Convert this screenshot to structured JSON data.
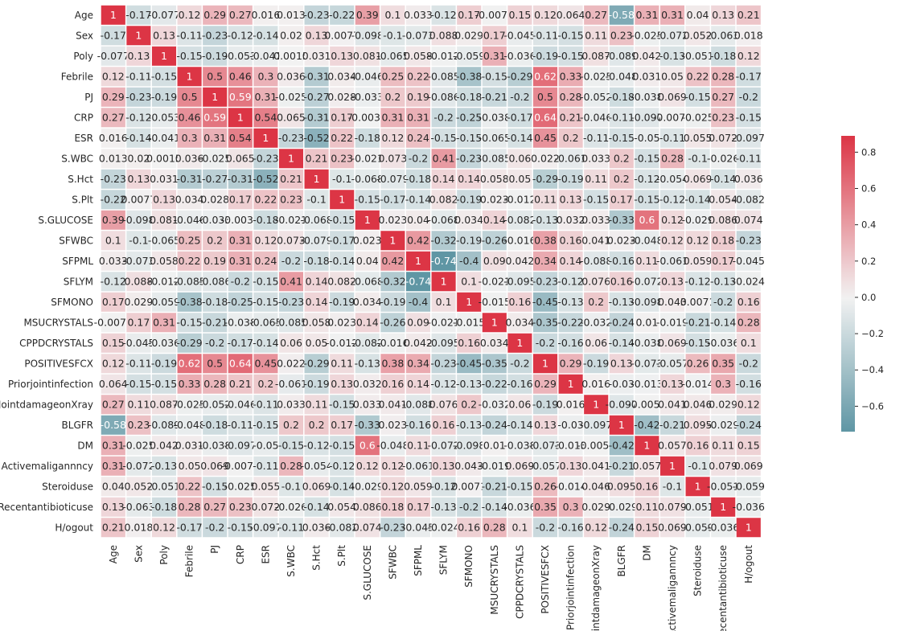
{
  "chart_data": {
    "type": "heatmap",
    "labels": [
      "Age",
      "Sex",
      "Poly",
      "Febrile",
      "PJ",
      "CRP",
      "ESR",
      "S.WBC",
      "S.Hct",
      "S.Plt",
      "S.GLUCOSE",
      "SFWBC",
      "SFPML",
      "SFLYM",
      "SFMONO",
      "MSUCRYSTALS",
      "CPPDCRYSTALS",
      "POSITIVESFCX",
      "Priorjointinfection",
      "JointdamageonXray",
      "BLGFR",
      "DM",
      "Activemaligannncy",
      "Steroiduse",
      "Recentantibioticuse",
      "H/ogout"
    ],
    "cell_text": [
      [
        "1",
        "-0.17",
        "-0.077",
        "0.12",
        "0.29",
        "0.27",
        "0.016",
        "0.013",
        "-0.23",
        "-0.22",
        "0.39",
        "0.1",
        "0.033",
        "-0.12",
        "0.17",
        "-0.0075",
        "0.15",
        "0.12",
        "0.064",
        "0.27",
        "-0.58",
        "0.31",
        "0.31",
        "0.04",
        "0.13",
        "0.21"
      ],
      [
        "-0.17",
        "1",
        "0.13",
        "-0.11",
        "-0.23",
        "-0.12",
        "-0.14",
        "0.02",
        "0.13",
        "0.0077",
        "-0.098",
        "-0.1",
        "-0.073",
        "0.088",
        "0.029",
        "0.17",
        "-0.045",
        "-0.11",
        "-0.15",
        "0.11",
        "0.23",
        "-0.025",
        "-0.072",
        "0.052",
        "-0.063",
        "0.018"
      ],
      [
        "-0.077",
        "0.13",
        "1",
        "-0.15",
        "-0.19",
        "-0.053",
        "-0.041",
        "0.0015",
        "0.031",
        "0.13",
        "0.081",
        "-0.065",
        "0.058",
        "-0.012",
        "-0.059",
        "0.31",
        "-0.036",
        "-0.19",
        "-0.15",
        "0.087",
        "-0.089",
        "0.042",
        "-0.13",
        "-0.051",
        "-0.18",
        "0.12"
      ],
      [
        "0.12",
        "-0.11",
        "-0.15",
        "1",
        "0.5",
        "0.46",
        "0.3",
        "0.036",
        "-0.31",
        "0.034",
        "-0.046",
        "0.25",
        "0.22",
        "-0.085",
        "-0.38",
        "-0.15",
        "-0.29",
        "0.62",
        "0.33",
        "-0.025",
        "-0.048",
        "0.031",
        "0.05",
        "0.22",
        "0.28",
        "-0.17"
      ],
      [
        "0.29",
        "-0.23",
        "-0.19",
        "0.5",
        "1",
        "0.59",
        "0.31",
        "-0.025",
        "-0.27",
        "0.028",
        "-0.033",
        "0.2",
        "0.19",
        "-0.086",
        "-0.18",
        "-0.21",
        "-0.2",
        "0.5",
        "0.28",
        "-0.052",
        "-0.18",
        "-0.038",
        "0.069",
        "-0.15",
        "0.27",
        "-0.2"
      ],
      [
        "0.27",
        "-0.12",
        "-0.053",
        "0.46",
        "0.59",
        "1",
        "0.54",
        "0.065",
        "-0.31",
        "0.17",
        "-0.0034",
        "0.31",
        "0.31",
        "-0.2",
        "-0.25",
        "-0.038",
        "-0.17",
        "0.64",
        "0.21",
        "-0.046",
        "-0.11",
        "-0.097",
        "-0.0072",
        "-0.025",
        "0.23",
        "-0.15"
      ],
      [
        "0.016",
        "-0.14",
        "-0.041",
        "0.3",
        "0.31",
        "0.54",
        "1",
        "-0.23",
        "-0.52",
        "0.22",
        "-0.18",
        "0.12",
        "0.24",
        "-0.15",
        "-0.15",
        "-0.065",
        "-0.14",
        "0.45",
        "0.2",
        "-0.11",
        "-0.15",
        "-0.05",
        "-0.11",
        "0.055",
        "0.072",
        "-0.097"
      ],
      [
        "0.013",
        "0.02",
        "0.0015",
        "0.036",
        "-0.025",
        "0.065",
        "-0.23",
        "1",
        "0.21",
        "0.23",
        "-0.021",
        "0.073",
        "-0.2",
        "0.41",
        "-0.23",
        "-0.085",
        "0.06",
        "0.022",
        "-0.061",
        "0.033",
        "0.2",
        "-0.15",
        "0.28",
        "-0.1",
        "-0.026",
        "-0.11"
      ],
      [
        "-0.23",
        "0.13",
        "0.031",
        "-0.31",
        "-0.27",
        "-0.31",
        "-0.52",
        "0.21",
        "1",
        "-0.1",
        "-0.068",
        "-0.079",
        "-0.18",
        "0.14",
        "0.14",
        "0.058",
        "0.05",
        "-0.29",
        "-0.19",
        "0.11",
        "0.2",
        "-0.12",
        "-0.054",
        "0.069",
        "-0.14",
        "0.036"
      ],
      [
        "-0.22",
        "0.0077",
        "0.13",
        "0.034",
        "0.028",
        "0.17",
        "0.22",
        "0.23",
        "-0.1",
        "1",
        "-0.15",
        "-0.17",
        "-0.14",
        "0.082",
        "-0.19",
        "0.023",
        "-0.012",
        "0.11",
        "0.13",
        "-0.15",
        "0.17",
        "-0.15",
        "-0.12",
        "-0.14",
        "0.054",
        "-0.082"
      ],
      [
        "0.39",
        "-0.098",
        "0.081",
        "-0.046",
        "-0.033",
        "-0.0034",
        "-0.18",
        "-0.021",
        "-0.068",
        "-0.15",
        "1",
        "0.023",
        "0.04",
        "-0.068",
        "0.034",
        "0.14",
        "-0.082",
        "-0.13",
        "0.032",
        "0.033",
        "-0.33",
        "0.6",
        "0.12",
        "-0.029",
        "0.086",
        "0.074"
      ],
      [
        "0.1",
        "-0.1",
        "-0.065",
        "0.25",
        "0.2",
        "0.31",
        "0.12",
        "0.073",
        "-0.079",
        "-0.17",
        "0.023",
        "1",
        "0.42",
        "-0.32",
        "-0.19",
        "-0.26",
        "-0.016",
        "0.38",
        "0.16",
        "0.041",
        "0.023",
        "-0.048",
        "0.12",
        "0.12",
        "0.18",
        "-0.23"
      ],
      [
        "0.033",
        "-0.073",
        "0.058",
        "0.22",
        "0.19",
        "0.31",
        "0.24",
        "-0.2",
        "-0.18",
        "-0.14",
        "0.04",
        "0.42",
        "1",
        "-0.74",
        "-0.4",
        "0.09",
        "0.042",
        "0.34",
        "0.14",
        "-0.088",
        "-0.16",
        "0.11",
        "-0.061",
        "0.059",
        "0.17",
        "-0.045"
      ],
      [
        "-0.12",
        "0.088",
        "-0.012",
        "-0.085",
        "-0.086",
        "-0.2",
        "-0.15",
        "0.41",
        "0.14",
        "0.082",
        "-0.068",
        "-0.32",
        "-0.74",
        "1",
        "0.1",
        "-0.021",
        "-0.095",
        "-0.23",
        "-0.12",
        "0.076",
        "0.16",
        "-0.072",
        "0.13",
        "-0.12",
        "-0.13",
        "-0.024"
      ],
      [
        "0.17",
        "0.029",
        "-0.059",
        "-0.38",
        "-0.18",
        "-0.25",
        "-0.15",
        "-0.23",
        "0.14",
        "-0.19",
        "0.034",
        "-0.19",
        "-0.4",
        "0.1",
        "1",
        "-0.015",
        "0.16",
        "-0.45",
        "-0.13",
        "0.2",
        "-0.13",
        "-0.098",
        "0.043",
        "0.0071",
        "-0.2",
        "0.16"
      ],
      [
        "-0.0075",
        "0.17",
        "0.31",
        "-0.15",
        "-0.21",
        "-0.038",
        "-0.065",
        "-0.085",
        "0.058",
        "0.023",
        "0.14",
        "-0.26",
        "0.09",
        "-0.021",
        "-0.015",
        "1",
        "0.034",
        "-0.35",
        "-0.22",
        "-0.032",
        "-0.24",
        "0.01",
        "-0.019",
        "-0.21",
        "-0.14",
        "0.28"
      ],
      [
        "0.15",
        "-0.045",
        "-0.036",
        "-0.29",
        "-0.2",
        "-0.17",
        "-0.14",
        "0.06",
        "0.05",
        "-0.012",
        "-0.082",
        "-0.016",
        "0.042",
        "-0.095",
        "0.16",
        "0.034",
        "1",
        "-0.2",
        "-0.16",
        "0.06",
        "-0.14",
        "-0.038",
        "0.069",
        "-0.15",
        "-0.036",
        "0.1"
      ],
      [
        "0.12",
        "-0.11",
        "-0.19",
        "0.62",
        "0.5",
        "0.64",
        "0.45",
        "0.022",
        "-0.29",
        "0.11",
        "-0.13",
        "0.38",
        "0.34",
        "-0.23",
        "-0.45",
        "-0.35",
        "-0.2",
        "1",
        "0.29",
        "-0.19",
        "0.13",
        "-0.073",
        "-0.057",
        "0.26",
        "0.35",
        "-0.2"
      ],
      [
        "0.064",
        "-0.15",
        "-0.15",
        "0.33",
        "0.28",
        "0.21",
        "0.2",
        "-0.061",
        "-0.19",
        "0.13",
        "0.032",
        "0.16",
        "0.14",
        "-0.12",
        "-0.13",
        "-0.22",
        "-0.16",
        "0.29",
        "1",
        "0.016",
        "-0.03",
        "-0.013",
        "0.13",
        "-0.014",
        "0.3",
        "-0.16"
      ],
      [
        "0.27",
        "0.11",
        "0.087",
        "-0.025",
        "-0.052",
        "-0.046",
        "-0.11",
        "0.033",
        "0.11",
        "-0.15",
        "0.033",
        "0.041",
        "-0.088",
        "0.076",
        "0.2",
        "-0.032",
        "0.06",
        "-0.19",
        "0.016",
        "1",
        "-0.097",
        "-0.0057",
        "0.041",
        "0.046",
        "0.029",
        "0.12"
      ],
      [
        "-0.58",
        "0.23",
        "-0.089",
        "-0.048",
        "-0.18",
        "-0.11",
        "-0.15",
        "0.2",
        "0.2",
        "0.17",
        "-0.33",
        "0.023",
        "-0.16",
        "0.16",
        "-0.13",
        "-0.24",
        "-0.14",
        "0.13",
        "-0.03",
        "-0.097",
        "1",
        "-0.42",
        "-0.21",
        "0.095",
        "-0.029",
        "-0.24"
      ],
      [
        "0.31",
        "-0.025",
        "0.042",
        "0.031",
        "-0.038",
        "-0.097",
        "-0.05",
        "-0.15",
        "-0.12",
        "-0.15",
        "0.6",
        "-0.048",
        "0.11",
        "-0.072",
        "-0.098",
        "0.01",
        "-0.038",
        "-0.073",
        "-0.013",
        "-0.0057",
        "-0.42",
        "1",
        "0.057",
        "0.16",
        "0.11",
        "0.15"
      ],
      [
        "0.31",
        "-0.072",
        "-0.13",
        "0.05",
        "0.069",
        "-0.0072",
        "-0.11",
        "0.28",
        "-0.054",
        "-0.12",
        "0.12",
        "0.12",
        "-0.061",
        "0.13",
        "0.043",
        "-0.019",
        "0.069",
        "-0.057",
        "0.13",
        "0.041",
        "-0.21",
        "0.057",
        "1",
        "-0.1",
        "0.079",
        "0.069"
      ],
      [
        "0.04",
        "0.052",
        "-0.051",
        "0.22",
        "-0.15",
        "-0.025",
        "0.055",
        "-0.1",
        "0.069",
        "-0.14",
        "-0.029",
        "0.12",
        "0.059",
        "-0.12",
        "0.0071",
        "-0.21",
        "-0.15",
        "0.26",
        "-0.014",
        "0.046",
        "0.095",
        "0.16",
        "-0.1",
        "1",
        "-0.051",
        "-0.059"
      ],
      [
        "0.13",
        "-0.063",
        "-0.18",
        "0.28",
        "0.27",
        "0.23",
        "0.072",
        "-0.026",
        "-0.14",
        "0.054",
        "0.086",
        "0.18",
        "0.17",
        "-0.13",
        "-0.2",
        "-0.14",
        "-0.036",
        "0.35",
        "0.3",
        "0.029",
        "-0.029",
        "0.11",
        "0.079",
        "-0.051",
        "1",
        "-0.036"
      ],
      [
        "0.21",
        "0.018",
        "0.12",
        "-0.17",
        "-0.2",
        "-0.15",
        "-0.097",
        "-0.11",
        "0.036",
        "-0.082",
        "0.074",
        "-0.23",
        "-0.045",
        "-0.024",
        "0.16",
        "0.28",
        "0.1",
        "-0.2",
        "-0.16",
        "0.12",
        "-0.24",
        "0.15",
        "0.069",
        "-0.059",
        "-0.036",
        "1"
      ]
    ],
    "colorbar": {
      "min": -0.74,
      "max": 0.89,
      "ticks": [
        -0.6,
        -0.4,
        -0.2,
        0.0,
        0.2,
        0.4,
        0.6,
        0.8
      ],
      "tick_labels": [
        "−0.6",
        "−0.4",
        "−0.2",
        "0.0",
        "0.2",
        "0.4",
        "0.6",
        "0.8"
      ],
      "colors": {
        "negative": "#5f96a4",
        "middle": "#f2f2f2",
        "positive": "#dc3545"
      }
    },
    "grid": false,
    "legend": "right"
  }
}
